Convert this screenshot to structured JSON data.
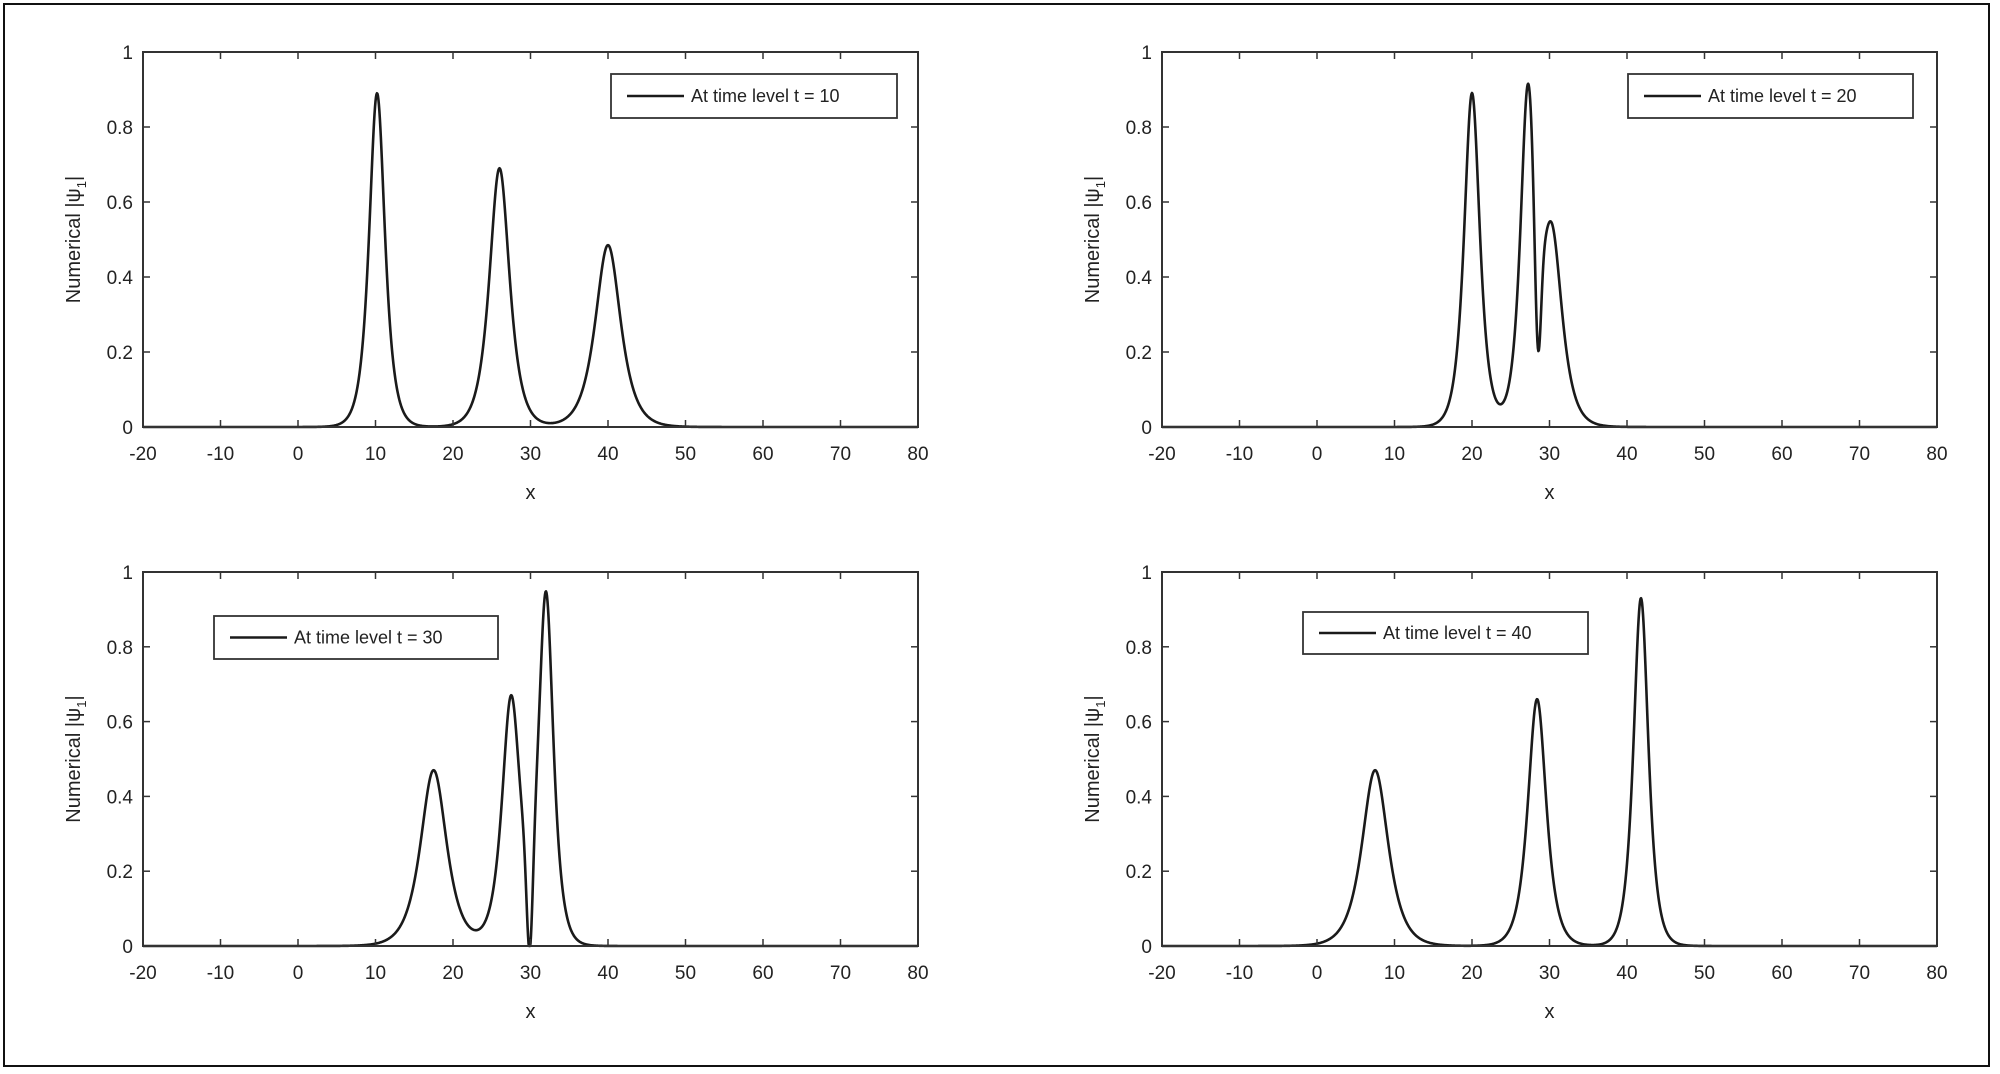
{
  "chart_data": [
    {
      "type": "line",
      "panel": "top-left",
      "title": "",
      "xlabel": "x",
      "ylabel": "Numerical |ψ1|",
      "xlim": [
        -20,
        80
      ],
      "ylim": [
        0,
        1
      ],
      "xticks": [
        -20,
        -10,
        0,
        10,
        20,
        30,
        40,
        50,
        60,
        70,
        80
      ],
      "yticks": [
        0,
        0.2,
        0.4,
        0.6,
        0.8,
        1
      ],
      "legend": {
        "label": "At time level t = 10",
        "position": "upper right"
      },
      "series": [
        {
          "name": "At time level t = 10",
          "peaks": [
            {
              "x": 10.2,
              "amplitude": 0.89,
              "width": 0.9
            },
            {
              "x": 26.0,
              "amplitude": 0.69,
              "width": 1.15
            },
            {
              "x": 40.0,
              "amplitude": 0.485,
              "width": 1.45
            }
          ]
        }
      ]
    },
    {
      "type": "line",
      "panel": "top-right",
      "title": "",
      "xlabel": "x",
      "ylabel": "Numerical |ψ1|",
      "xlim": [
        -20,
        80
      ],
      "ylim": [
        0,
        1
      ],
      "xticks": [
        -20,
        -10,
        0,
        10,
        20,
        30,
        40,
        50,
        60,
        70,
        80
      ],
      "yticks": [
        0,
        0.2,
        0.4,
        0.6,
        0.8,
        1
      ],
      "legend": {
        "label": "At time level t = 20",
        "position": "upper right"
      },
      "series": [
        {
          "name": "At time level t = 20",
          "peaks": [
            {
              "x": 20.0,
              "amplitude": 0.89,
              "width": 0.9
            },
            {
              "x": 27.2,
              "amplitude": 0.84,
              "width": 0.85
            },
            {
              "x": 30.3,
              "amplitude": 0.5,
              "width": 1.2
            }
          ],
          "features": [
            {
              "x": 22.7,
              "y": 0.013,
              "kind": "local min"
            },
            {
              "x": 28.5,
              "y": 0.1,
              "kind": "dip"
            }
          ]
        }
      ]
    },
    {
      "type": "line",
      "panel": "bottom-left",
      "title": "",
      "xlabel": "x",
      "ylabel": "Numerical |ψ1|",
      "xlim": [
        -20,
        80
      ],
      "ylim": [
        0,
        1
      ],
      "xticks": [
        -20,
        -10,
        0,
        10,
        20,
        30,
        40,
        50,
        60,
        70,
        80
      ],
      "yticks": [
        0,
        0.2,
        0.4,
        0.6,
        0.8,
        1
      ],
      "legend": {
        "label": "At time level t = 30",
        "position": "upper left"
      },
      "series": [
        {
          "name": "At time level t = 30",
          "peaks": [
            {
              "x": 17.5,
              "amplitude": 0.47,
              "width": 1.5
            },
            {
              "x": 27.5,
              "amplitude": 0.66,
              "width": 1.05
            },
            {
              "x": 32.0,
              "amplitude": 0.93,
              "width": 0.85
            }
          ],
          "features": [
            {
              "x": 22.8,
              "y": 0.01,
              "kind": "local min"
            },
            {
              "x": 29.9,
              "y": 0.12,
              "kind": "dip"
            }
          ]
        }
      ]
    },
    {
      "type": "line",
      "panel": "bottom-right",
      "title": "",
      "xlabel": "x",
      "ylabel": "Numerical |ψ1|",
      "xlim": [
        -20,
        80
      ],
      "ylim": [
        0,
        1
      ],
      "xticks": [
        -20,
        -10,
        0,
        10,
        20,
        30,
        40,
        50,
        60,
        70,
        80
      ],
      "yticks": [
        0,
        0.2,
        0.4,
        0.6,
        0.8,
        1
      ],
      "legend": {
        "label": "At time level t = 40",
        "position": "upper center"
      },
      "series": [
        {
          "name": "At time level t = 40",
          "peaks": [
            {
              "x": 7.5,
              "amplitude": 0.47,
              "width": 1.5
            },
            {
              "x": 28.4,
              "amplitude": 0.66,
              "width": 1.05
            },
            {
              "x": 41.8,
              "amplitude": 0.93,
              "width": 0.85
            }
          ]
        }
      ]
    }
  ],
  "panels": [
    {
      "xlabel": "x",
      "ylabel_main": "Numerical |ψ",
      "ylabel_sub": "1",
      "ylabel_end": "|",
      "legend": "At time level t = 10",
      "xtick_labels": [
        "-20",
        "-10",
        "0",
        "10",
        "20",
        "30",
        "40",
        "50",
        "60",
        "70",
        "80"
      ],
      "ytick_labels": [
        "0",
        "0.2",
        "0.4",
        "0.6",
        "0.8",
        "1"
      ]
    },
    {
      "xlabel": "x",
      "ylabel_main": "Numerical |ψ",
      "ylabel_sub": "1",
      "ylabel_end": "|",
      "legend": "At time level t = 20",
      "xtick_labels": [
        "-20",
        "-10",
        "0",
        "10",
        "20",
        "30",
        "40",
        "50",
        "60",
        "70",
        "80"
      ],
      "ytick_labels": [
        "0",
        "0.2",
        "0.4",
        "0.6",
        "0.8",
        "1"
      ]
    },
    {
      "xlabel": "x",
      "ylabel_main": "Numerical |ψ",
      "ylabel_sub": "1",
      "ylabel_end": "|",
      "legend": "At time level t = 30",
      "xtick_labels": [
        "-20",
        "-10",
        "0",
        "10",
        "20",
        "30",
        "40",
        "50",
        "60",
        "70",
        "80"
      ],
      "ytick_labels": [
        "0",
        "0.2",
        "0.4",
        "0.6",
        "0.8",
        "1"
      ]
    },
    {
      "xlabel": "x",
      "ylabel_main": "Numerical |ψ",
      "ylabel_sub": "1",
      "ylabel_end": "|",
      "legend": "At time level t = 40",
      "xtick_labels": [
        "-20",
        "-10",
        "0",
        "10",
        "20",
        "30",
        "40",
        "50",
        "60",
        "70",
        "80"
      ],
      "ytick_labels": [
        "0",
        "0.2",
        "0.4",
        "0.6",
        "0.8",
        "1"
      ]
    }
  ],
  "colors": {
    "line": "#1a1a1a",
    "axis": "#333333",
    "text": "#222222",
    "background": "#ffffff",
    "frame": "#111111"
  }
}
